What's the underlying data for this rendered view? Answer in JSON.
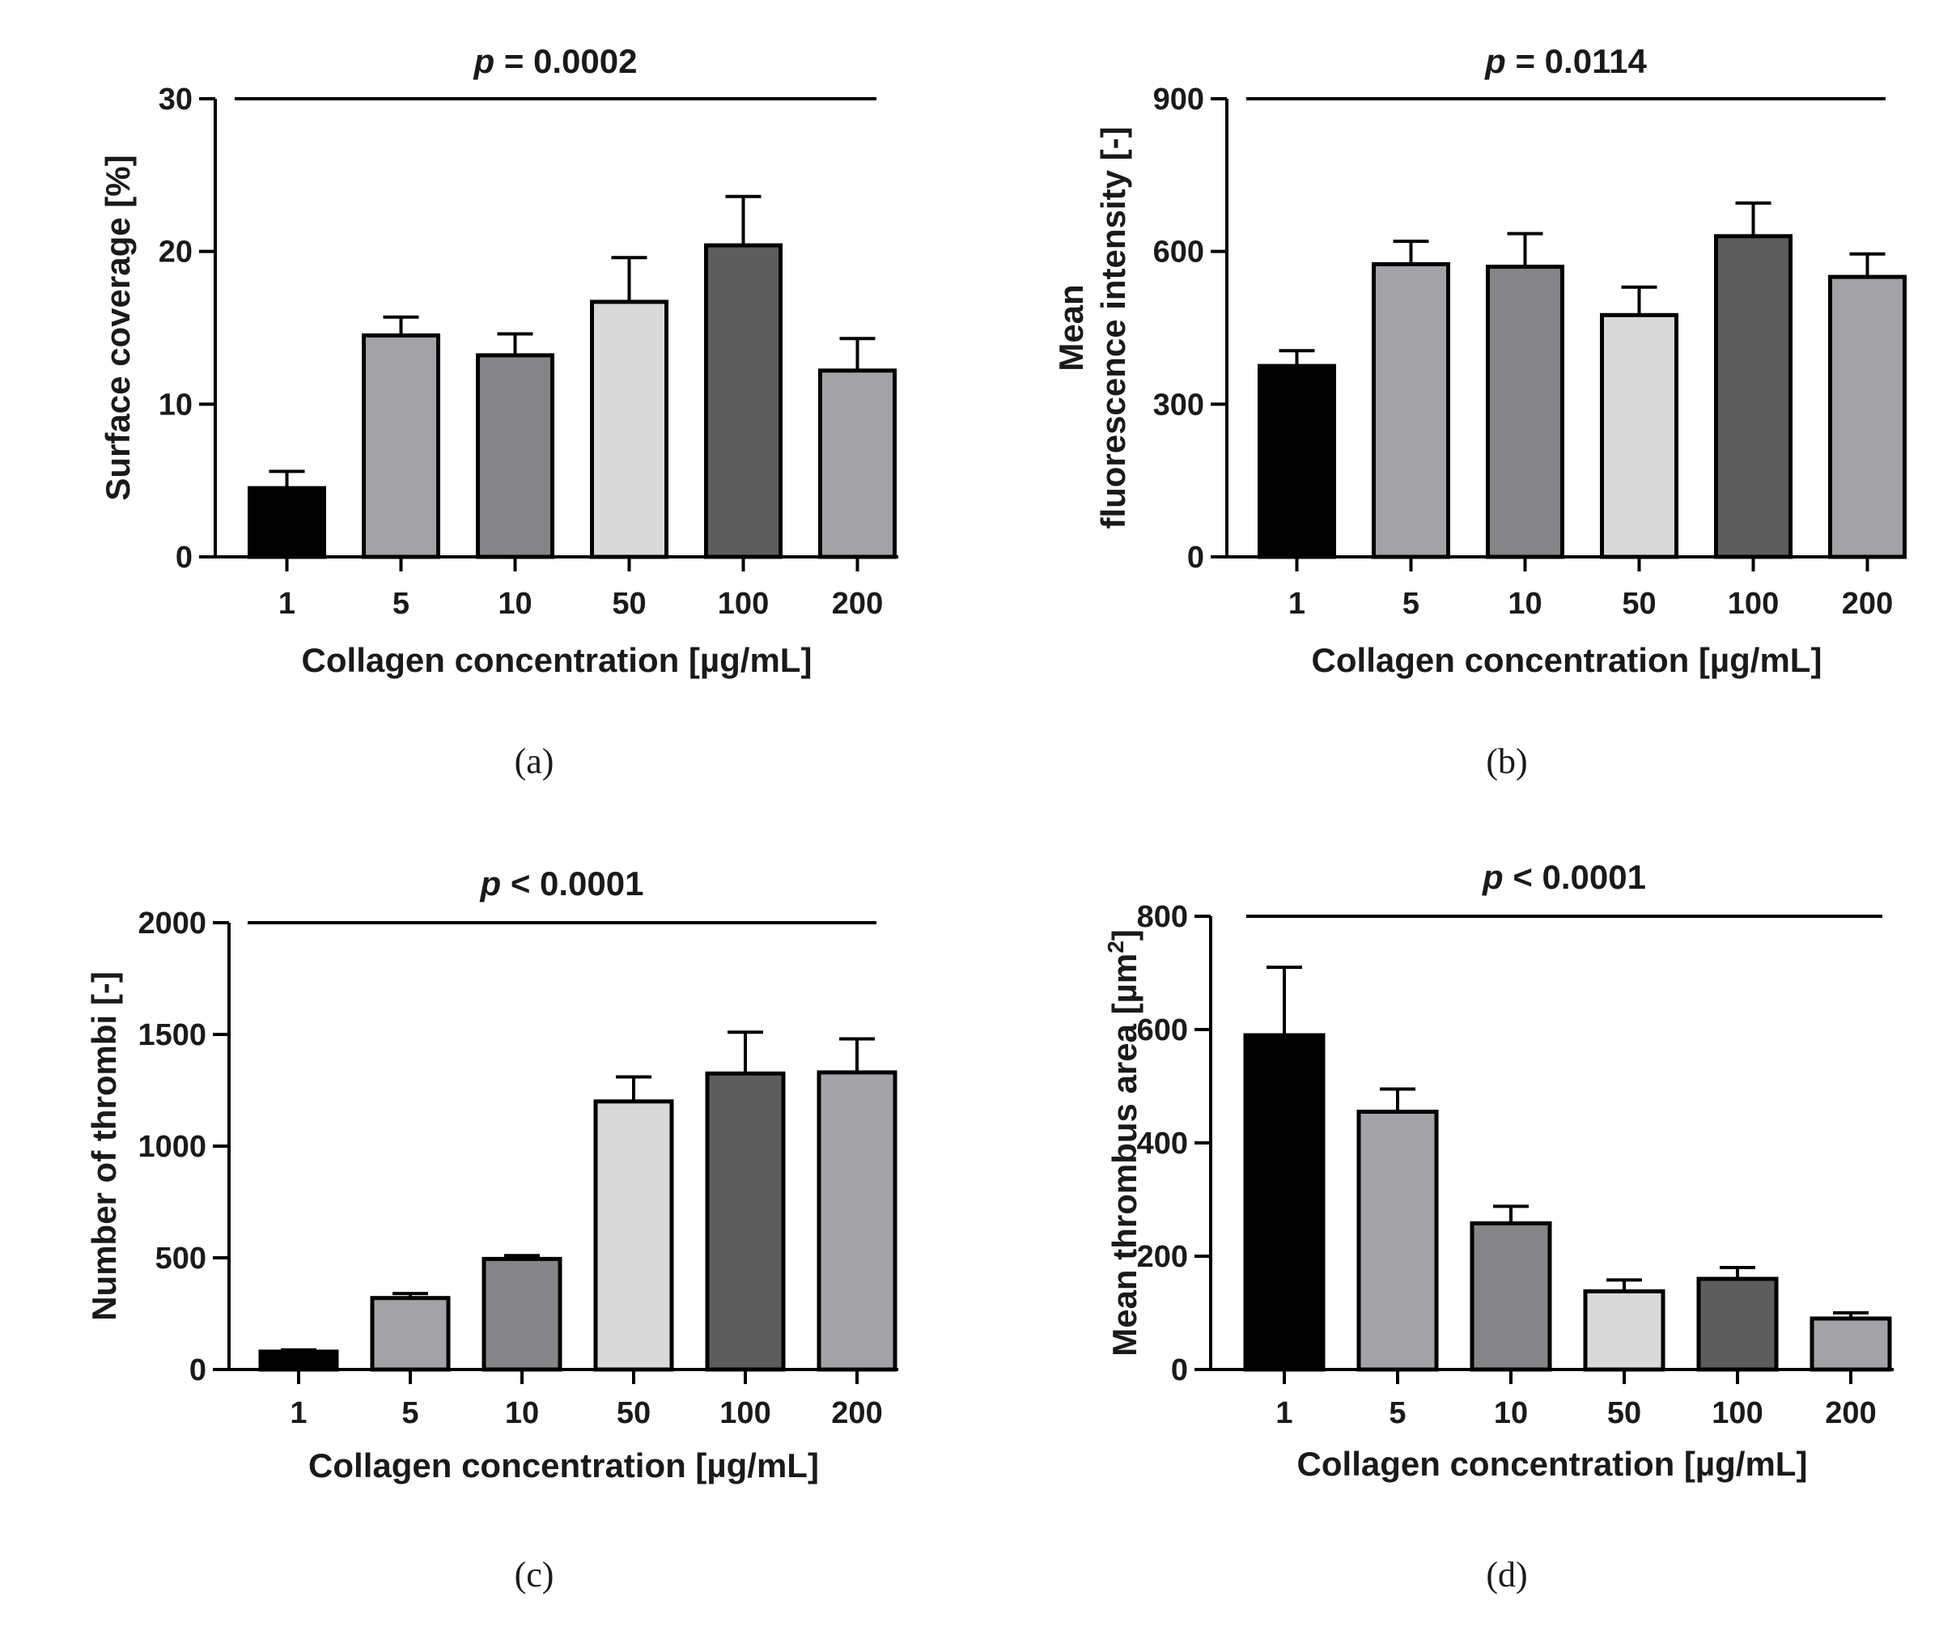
{
  "figure": {
    "panel_labels": [
      "(a)",
      "(b)",
      "(c)",
      "(d)"
    ],
    "bar_colors": [
      "#000000",
      "#a3a3a7",
      "#858587",
      "#d9d9d9",
      "#5d5d5d",
      "#a3a3a7"
    ],
    "outline_color": "#000000"
  },
  "chart_data": [
    {
      "type": "bar",
      "categories": [
        "1",
        "5",
        "10",
        "50",
        "100",
        "200"
      ],
      "values": [
        4.5,
        14.5,
        13.2,
        16.7,
        20.4,
        12.2
      ],
      "errors": [
        1.1,
        1.2,
        1.4,
        2.9,
        3.2,
        2.1
      ],
      "title": "",
      "p_italic": "p",
      "p_rest": " = 0.0002",
      "xlabel": "Collagen concentration [µg/mL]",
      "ylabel": "Surface coverage [%]",
      "ylim": [
        0,
        30
      ],
      "yticks": [
        0,
        10,
        20,
        30
      ],
      "yticklabels": [
        "0",
        "10",
        "20",
        "30"
      ]
    },
    {
      "type": "bar",
      "categories": [
        "1",
        "5",
        "10",
        "50",
        "100",
        "200"
      ],
      "values": [
        375,
        575,
        570,
        475,
        630,
        550
      ],
      "errors": [
        30,
        45,
        65,
        55,
        65,
        45
      ],
      "title": "",
      "p_italic": "p",
      "p_rest": " = 0.0114",
      "xlabel": "Collagen concentration [µg/mL]",
      "ylabel_lines": [
        "Mean",
        "fluorescence intensity [-]"
      ],
      "ylim": [
        0,
        900
      ],
      "yticks": [
        0,
        300,
        600,
        900
      ],
      "yticklabels": [
        "0",
        "300",
        "600",
        "900"
      ]
    },
    {
      "type": "bar",
      "categories": [
        "1",
        "5",
        "10",
        "50",
        "100",
        "200"
      ],
      "values": [
        80,
        320,
        495,
        1200,
        1325,
        1330
      ],
      "errors": [
        8,
        20,
        15,
        110,
        185,
        150
      ],
      "title": "",
      "p_italic": "p",
      "p_rest": " < 0.0001",
      "xlabel": "Collagen concentration [µg/mL]",
      "ylabel": "Number of thrombi [-]",
      "ylim": [
        0,
        2000
      ],
      "yticks": [
        0,
        500,
        1000,
        1500,
        2000
      ],
      "yticklabels": [
        "0",
        "500",
        "1000",
        "1500",
        "2000"
      ]
    },
    {
      "type": "bar",
      "categories": [
        "1",
        "5",
        "10",
        "50",
        "100",
        "200"
      ],
      "values": [
        590,
        455,
        258,
        138,
        160,
        90
      ],
      "errors": [
        120,
        40,
        30,
        20,
        20,
        10
      ],
      "title": "",
      "p_italic": "p",
      "p_rest": " < 0.0001",
      "xlabel": "Collagen concentration [µg/mL]",
      "ylabel_main": "Mean thrombus area [µm",
      "ylabel_sup": "2",
      "ylabel_end": "]",
      "ylim": [
        0,
        800
      ],
      "yticks": [
        0,
        200,
        400,
        600,
        800
      ],
      "yticklabels": [
        "0",
        "200",
        "400",
        "600",
        "800"
      ]
    }
  ]
}
